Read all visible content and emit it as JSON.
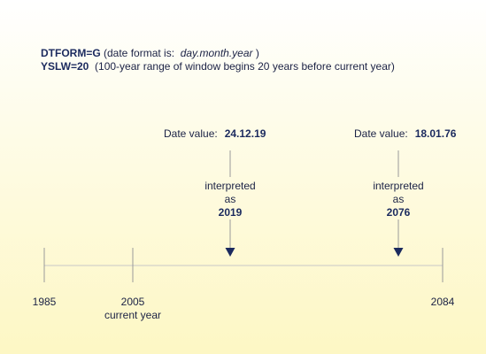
{
  "notes": [
    {
      "key": "DTFORM=G",
      "text": " (date format is:  ",
      "em": "day.month.year",
      "tail": " )"
    },
    {
      "key": "YSLW=20",
      "text": "  (100-year range of window begins 20 years before current year)",
      "em": "",
      "tail": ""
    }
  ],
  "dates": [
    {
      "label": "Date value:",
      "value": "24.12.19",
      "interp_top": "interpreted",
      "interp_mid": "as",
      "year": "2019"
    },
    {
      "label": "Date value:",
      "value": "18.01.76",
      "interp_top": "interpreted",
      "interp_mid": "as",
      "year": "2076"
    }
  ],
  "axis": {
    "ticks": [
      {
        "label": "1985",
        "sub": ""
      },
      {
        "label": "2005",
        "sub": "current year"
      },
      {
        "label": "2084",
        "sub": ""
      }
    ]
  },
  "colors": {
    "line": "#9a9a9a",
    "arrow": "#1b2a5e"
  }
}
